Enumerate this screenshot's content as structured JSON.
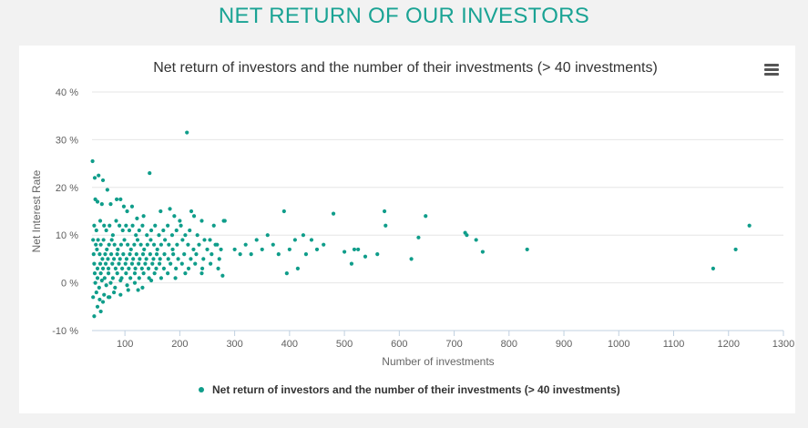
{
  "page_title": "NET RETURN OF OUR INVESTORS",
  "menu": {
    "icon": "hamburger-menu-icon"
  },
  "colors": {
    "accent": "#1aa394",
    "point": "#0f9d8a",
    "grid": "#e6e6e6"
  },
  "chart_data": {
    "type": "scatter",
    "title": "Net return of investors and the number of their investments (> 40 investments)",
    "xlabel": "Number of investments",
    "ylabel": "Net Interest Rate",
    "xlim": [
      40,
      1300
    ],
    "ylim": [
      -10,
      40
    ],
    "x_ticks": [
      {
        "value": 100,
        "label": "100"
      },
      {
        "value": 200,
        "label": "200"
      },
      {
        "value": 300,
        "label": "300"
      },
      {
        "value": 400,
        "label": "400"
      },
      {
        "value": 500,
        "label": "500"
      },
      {
        "value": 600,
        "label": "600"
      },
      {
        "value": 700,
        "label": "700"
      },
      {
        "value": 800,
        "label": "800"
      },
      {
        "value": 900,
        "label": "900"
      },
      {
        "value": 1000,
        "label": "1000"
      },
      {
        "value": 1100,
        "label": "1100"
      },
      {
        "value": 1200,
        "label": "1200"
      },
      {
        "value": 1300,
        "label": "1300"
      }
    ],
    "y_ticks": [
      {
        "value": 40,
        "label": "40 %"
      },
      {
        "value": 30,
        "label": "30 %"
      },
      {
        "value": 20,
        "label": "20 %"
      },
      {
        "value": 10,
        "label": "10 %"
      },
      {
        "value": 0,
        "label": "0 %"
      },
      {
        "value": -10,
        "label": "-10 %"
      }
    ],
    "grid": true,
    "legend_position": "bottom-center",
    "series": [
      {
        "name": "Net return of investors and the number of their investments (> 40 investments)",
        "points": [
          [
            41,
            25.5
          ],
          [
            45,
            22
          ],
          [
            52,
            22.5
          ],
          [
            60,
            21.5
          ],
          [
            68,
            19.5
          ],
          [
            46,
            17.5
          ],
          [
            50,
            17
          ],
          [
            58,
            16.5
          ],
          [
            74,
            16.5
          ],
          [
            85,
            17.5
          ],
          [
            92,
            17.5
          ],
          [
            98,
            16
          ],
          [
            104,
            15
          ],
          [
            113,
            16
          ],
          [
            122,
            13.5
          ],
          [
            134,
            14
          ],
          [
            145,
            23
          ],
          [
            165,
            15
          ],
          [
            182,
            15.5
          ],
          [
            190,
            14
          ],
          [
            200,
            13
          ],
          [
            213,
            31.5
          ],
          [
            221,
            15
          ],
          [
            226,
            14
          ],
          [
            240,
            13
          ],
          [
            262,
            12
          ],
          [
            280,
            13
          ],
          [
            282,
            13
          ],
          [
            44,
            12
          ],
          [
            48,
            11
          ],
          [
            55,
            13
          ],
          [
            62,
            12
          ],
          [
            66,
            11
          ],
          [
            72,
            12
          ],
          [
            78,
            10
          ],
          [
            84,
            13
          ],
          [
            90,
            12
          ],
          [
            96,
            11
          ],
          [
            102,
            12
          ],
          [
            108,
            11
          ],
          [
            114,
            12
          ],
          [
            120,
            10
          ],
          [
            126,
            11
          ],
          [
            132,
            12
          ],
          [
            140,
            10
          ],
          [
            148,
            11
          ],
          [
            155,
            12
          ],
          [
            162,
            10
          ],
          [
            170,
            11
          ],
          [
            178,
            12
          ],
          [
            186,
            10
          ],
          [
            194,
            11
          ],
          [
            202,
            12
          ],
          [
            210,
            10
          ],
          [
            218,
            11
          ],
          [
            232,
            10
          ],
          [
            245,
            9
          ],
          [
            255,
            9
          ],
          [
            268,
            8
          ],
          [
            42,
            9
          ],
          [
            47,
            8
          ],
          [
            51,
            9
          ],
          [
            56,
            8
          ],
          [
            61,
            9
          ],
          [
            67,
            7
          ],
          [
            71,
            8
          ],
          [
            76,
            9
          ],
          [
            81,
            8
          ],
          [
            87,
            7
          ],
          [
            93,
            8
          ],
          [
            99,
            9
          ],
          [
            105,
            8
          ],
          [
            111,
            7
          ],
          [
            117,
            8
          ],
          [
            123,
            9
          ],
          [
            129,
            8
          ],
          [
            135,
            7
          ],
          [
            141,
            8
          ],
          [
            147,
            9
          ],
          [
            153,
            8
          ],
          [
            159,
            7
          ],
          [
            166,
            8
          ],
          [
            173,
            9
          ],
          [
            180,
            8
          ],
          [
            187,
            7
          ],
          [
            195,
            8
          ],
          [
            205,
            9
          ],
          [
            215,
            8
          ],
          [
            225,
            7
          ],
          [
            235,
            8
          ],
          [
            250,
            7
          ],
          [
            265,
            8
          ],
          [
            275,
            7
          ],
          [
            43,
            6
          ],
          [
            49,
            7
          ],
          [
            54,
            6
          ],
          [
            59,
            5
          ],
          [
            64,
            6
          ],
          [
            69,
            5
          ],
          [
            75,
            6
          ],
          [
            80,
            5
          ],
          [
            86,
            6
          ],
          [
            91,
            5
          ],
          [
            97,
            6
          ],
          [
            103,
            5
          ],
          [
            109,
            6
          ],
          [
            115,
            5
          ],
          [
            121,
            6
          ],
          [
            127,
            5
          ],
          [
            133,
            6
          ],
          [
            139,
            5
          ],
          [
            146,
            6
          ],
          [
            152,
            5
          ],
          [
            158,
            6
          ],
          [
            164,
            5
          ],
          [
            172,
            6
          ],
          [
            179,
            5
          ],
          [
            188,
            6
          ],
          [
            197,
            5
          ],
          [
            208,
            6
          ],
          [
            220,
            5
          ],
          [
            230,
            6
          ],
          [
            243,
            5
          ],
          [
            258,
            6
          ],
          [
            272,
            5
          ],
          [
            44,
            4
          ],
          [
            50,
            3
          ],
          [
            55,
            4
          ],
          [
            60,
            3
          ],
          [
            65,
            4
          ],
          [
            70,
            3
          ],
          [
            77,
            4
          ],
          [
            83,
            3
          ],
          [
            89,
            4
          ],
          [
            95,
            3
          ],
          [
            101,
            4
          ],
          [
            107,
            3
          ],
          [
            113,
            4
          ],
          [
            119,
            3
          ],
          [
            125,
            4
          ],
          [
            131,
            3
          ],
          [
            137,
            4
          ],
          [
            143,
            3
          ],
          [
            150,
            4
          ],
          [
            157,
            3
          ],
          [
            163,
            4
          ],
          [
            171,
            3
          ],
          [
            183,
            4
          ],
          [
            193,
            3
          ],
          [
            204,
            4
          ],
          [
            216,
            3
          ],
          [
            228,
            4
          ],
          [
            241,
            3
          ],
          [
            256,
            4
          ],
          [
            270,
            3
          ],
          [
            45,
            2
          ],
          [
            50,
            1
          ],
          [
            56,
            2
          ],
          [
            63,
            1
          ],
          [
            70,
            2
          ],
          [
            78,
            1
          ],
          [
            86,
            2
          ],
          [
            94,
            1
          ],
          [
            102,
            2
          ],
          [
            110,
            1
          ],
          [
            118,
            2
          ],
          [
            126,
            1
          ],
          [
            134,
            2
          ],
          [
            144,
            1
          ],
          [
            154,
            2
          ],
          [
            166,
            1
          ],
          [
            178,
            2
          ],
          [
            192,
            1
          ],
          [
            210,
            2
          ],
          [
            240,
            2
          ],
          [
            278,
            1.5
          ],
          [
            46,
            0
          ],
          [
            53,
            -1
          ],
          [
            58,
            0.5
          ],
          [
            66,
            -0.5
          ],
          [
            74,
            0
          ],
          [
            82,
            -1
          ],
          [
            92,
            0.5
          ],
          [
            104,
            -0.5
          ],
          [
            118,
            0
          ],
          [
            132,
            -1
          ],
          [
            148,
            0.5
          ],
          [
            42,
            -3
          ],
          [
            48,
            -2
          ],
          [
            54,
            -3.5
          ],
          [
            62,
            -2.5
          ],
          [
            70,
            -3
          ],
          [
            80,
            -2
          ],
          [
            92,
            -2.5
          ],
          [
            106,
            -1.5
          ],
          [
            124,
            -1.5
          ],
          [
            44,
            -7
          ],
          [
            50,
            -5
          ],
          [
            56,
            -6
          ],
          [
            60,
            -4
          ],
          [
            72,
            -3
          ],
          [
            300,
            7
          ],
          [
            310,
            6
          ],
          [
            320,
            8
          ],
          [
            330,
            6
          ],
          [
            340,
            9
          ],
          [
            350,
            7
          ],
          [
            360,
            10
          ],
          [
            370,
            8
          ],
          [
            380,
            6
          ],
          [
            390,
            15
          ],
          [
            395,
            2
          ],
          [
            400,
            7
          ],
          [
            410,
            9
          ],
          [
            415,
            3
          ],
          [
            425,
            10
          ],
          [
            430,
            6
          ],
          [
            440,
            9
          ],
          [
            450,
            7
          ],
          [
            462,
            8
          ],
          [
            480,
            14.5
          ],
          [
            500,
            6.5
          ],
          [
            513,
            4
          ],
          [
            518,
            7
          ],
          [
            525,
            7
          ],
          [
            538,
            5.5
          ],
          [
            560,
            6
          ],
          [
            573,
            15
          ],
          [
            575,
            12
          ],
          [
            622,
            5
          ],
          [
            635,
            9.5
          ],
          [
            648,
            14
          ],
          [
            720,
            10.5
          ],
          [
            723,
            10
          ],
          [
            740,
            9
          ],
          [
            752,
            6.5
          ],
          [
            833,
            7
          ],
          [
            1172,
            3
          ],
          [
            1213,
            7
          ],
          [
            1238,
            12
          ]
        ]
      }
    ]
  }
}
